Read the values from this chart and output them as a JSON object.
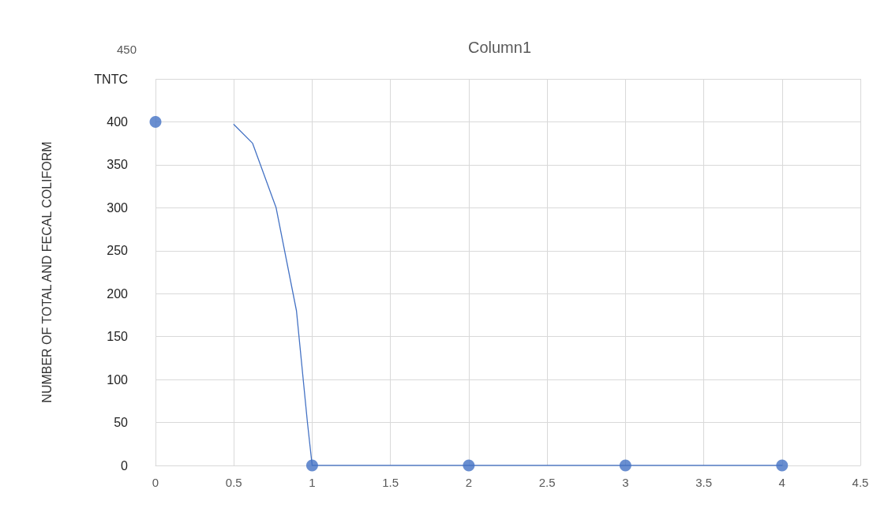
{
  "chart_data": {
    "type": "scatter",
    "title": "Column1",
    "ylabel": "NUMBER OF TOTAL AND FECAL COLIFORM",
    "series": [
      {
        "color": "#4472c4",
        "marker": "circle",
        "x": [
          0,
          1,
          2,
          3,
          4
        ],
        "values": [
          400,
          0,
          0,
          0,
          0
        ]
      },
      {
        "type": "line",
        "color": "#4472c4",
        "marker": "none",
        "line_style": "solid",
        "x": [
          0.5,
          0.62,
          0.77,
          0.9,
          0.97,
          1,
          2,
          3,
          4
        ],
        "values": [
          397,
          375,
          300,
          180,
          50,
          0,
          0,
          0,
          0
        ]
      }
    ],
    "xlim": [
      0,
      4.5
    ],
    "xticks": [
      0,
      0.5,
      1,
      1.5,
      2,
      2.5,
      3,
      3.5,
      4,
      4.5
    ],
    "ylim": [
      0,
      450
    ],
    "yticks": [
      0,
      50,
      100,
      150,
      200,
      250,
      300,
      350,
      400,
      {
        "value": 450,
        "label": "TNTC"
      }
    ],
    "annotations": [
      "450"
    ],
    "grid": true
  }
}
